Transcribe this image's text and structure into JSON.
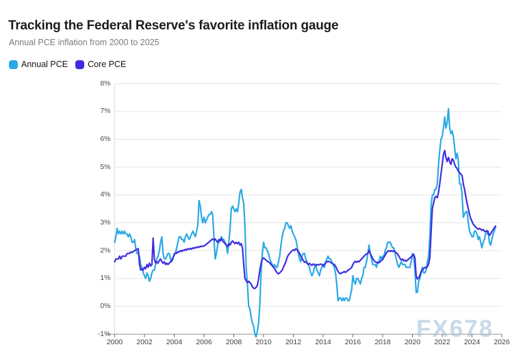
{
  "header": {
    "title": "Tracking the Federal Reserve's favorite inflation gauge",
    "subtitle": "Annual PCE inflation from 2000 to 2025"
  },
  "watermark": {
    "text": "FX678"
  },
  "chart_data": {
    "type": "line",
    "title": "Tracking the Federal Reserve's favorite inflation gauge",
    "subtitle": "Annual PCE inflation from 2000 to 2025",
    "xlabel": "",
    "ylabel": "",
    "xlim": [
      2000,
      2026
    ],
    "ylim": [
      -1,
      8
    ],
    "grid": "horizontal",
    "legend_position": "top-left",
    "x_start_year": 2000,
    "x_interval_months": 1,
    "x_ticks": [
      2000,
      2002,
      2004,
      2006,
      2008,
      2010,
      2012,
      2014,
      2016,
      2018,
      2020,
      2022,
      2024,
      2026
    ],
    "y_ticks": [
      "8%",
      "7%",
      "6%",
      "5%",
      "4%",
      "3%",
      "2%",
      "1%",
      "0%",
      "-1%"
    ],
    "series": [
      {
        "name": "Annual PCE",
        "color": "#29a9e5",
        "values": [
          2.3,
          2.5,
          2.8,
          2.6,
          2.7,
          2.6,
          2.7,
          2.6,
          2.7,
          2.6,
          2.6,
          2.5,
          2.6,
          2.5,
          2.3,
          2.3,
          2.4,
          2.1,
          1.9,
          1.9,
          1.8,
          1.5,
          1.4,
          1.2,
          1.1,
          1.0,
          1.2,
          1.1,
          0.9,
          1.0,
          1.2,
          1.3,
          1.3,
          1.5,
          1.7,
          1.8,
          2.0,
          2.3,
          2.5,
          1.9,
          1.7,
          1.7,
          1.8,
          1.9,
          1.9,
          1.7,
          1.6,
          1.7,
          1.9,
          1.9,
          2.1,
          2.3,
          2.5,
          2.5,
          2.4,
          2.4,
          2.3,
          2.5,
          2.6,
          2.5,
          2.4,
          2.5,
          2.6,
          2.7,
          2.6,
          2.5,
          2.7,
          2.9,
          3.8,
          3.6,
          3.2,
          3.0,
          3.2,
          3.0,
          3.1,
          3.2,
          3.3,
          3.3,
          3.4,
          3.3,
          2.5,
          1.7,
          1.9,
          2.2,
          2.3,
          2.4,
          2.5,
          2.4,
          2.4,
          2.3,
          2.2,
          1.9,
          2.3,
          2.8,
          3.5,
          3.6,
          3.5,
          3.4,
          3.5,
          3.4,
          3.7,
          4.1,
          4.2,
          3.9,
          3.7,
          2.9,
          1.4,
          0.8,
          0.0,
          -0.1,
          -0.4,
          -0.6,
          -0.7,
          -1.0,
          -1.1,
          -0.9,
          -0.6,
          0.1,
          1.2,
          1.9,
          2.3,
          2.1,
          2.1,
          2.0,
          1.9,
          1.7,
          1.6,
          1.5,
          1.4,
          1.5,
          1.4,
          1.4,
          1.6,
          1.8,
          2.2,
          2.5,
          2.7,
          2.8,
          3.0,
          3.0,
          2.9,
          2.8,
          2.9,
          2.7,
          2.6,
          2.5,
          2.4,
          2.2,
          1.9,
          1.7,
          1.6,
          1.8,
          1.9,
          1.9,
          1.7,
          1.6,
          1.5,
          1.4,
          1.2,
          1.1,
          1.2,
          1.4,
          1.5,
          1.3,
          1.2,
          1.1,
          1.3,
          1.4,
          1.5,
          1.4,
          1.6,
          1.7,
          1.8,
          1.7,
          1.7,
          1.6,
          1.5,
          1.4,
          1.2,
          0.8,
          0.2,
          0.3,
          0.3,
          0.2,
          0.3,
          0.2,
          0.3,
          0.3,
          0.2,
          0.2,
          0.4,
          0.6,
          1.1,
          0.9,
          0.8,
          1.0,
          1.0,
          0.9,
          0.8,
          1.0,
          1.1,
          1.4,
          1.4,
          1.6,
          1.9,
          2.2,
          1.9,
          1.7,
          1.5,
          1.5,
          1.5,
          1.4,
          1.6,
          1.6,
          1.8,
          1.7,
          1.8,
          1.8,
          2.0,
          2.1,
          2.3,
          2.3,
          2.3,
          2.2,
          2.1,
          2.1,
          1.9,
          1.7,
          1.5,
          1.4,
          1.5,
          1.6,
          1.5,
          1.5,
          1.5,
          1.4,
          1.4,
          1.4,
          1.4,
          1.6,
          1.9,
          1.8,
          1.3,
          0.5,
          0.5,
          0.9,
          1.0,
          1.2,
          1.4,
          1.2,
          1.2,
          1.3,
          1.6,
          1.8,
          2.5,
          3.6,
          4.0,
          4.0,
          4.2,
          4.2,
          4.4,
          5.1,
          5.6,
          6.0,
          6.1,
          6.4,
          6.8,
          6.4,
          6.6,
          7.1,
          6.4,
          6.2,
          6.3,
          6.1,
          5.7,
          5.3,
          5.5,
          5.2,
          4.4,
          4.4,
          4.0,
          3.2,
          3.3,
          3.4,
          3.4,
          3.0,
          2.7,
          2.6,
          2.5,
          2.5,
          2.7,
          2.7,
          2.6,
          2.4,
          2.5,
          2.3,
          2.1,
          2.3,
          2.4,
          2.6,
          2.6,
          2.7,
          2.3,
          2.2,
          2.4,
          2.6,
          2.7,
          2.85
        ]
      },
      {
        "name": "Core PCE",
        "color": "#3e2cdf",
        "values": [
          1.6,
          1.7,
          1.7,
          1.7,
          1.8,
          1.7,
          1.8,
          1.8,
          1.8,
          1.8,
          1.9,
          1.9,
          1.9,
          1.95,
          1.93,
          1.97,
          2.0,
          2.03,
          2.05,
          2.07,
          1.5,
          1.3,
          1.35,
          1.3,
          1.4,
          1.35,
          1.5,
          1.4,
          1.55,
          1.45,
          1.5,
          2.45,
          1.7,
          1.55,
          1.6,
          1.55,
          1.65,
          1.7,
          1.6,
          1.55,
          1.6,
          1.5,
          1.55,
          1.5,
          1.55,
          1.6,
          1.65,
          1.75,
          1.85,
          1.92,
          1.9,
          1.96,
          1.95,
          2.0,
          1.97,
          2.02,
          2.0,
          2.05,
          2.02,
          2.07,
          2.05,
          2.08,
          2.05,
          2.1,
          2.08,
          2.12,
          2.1,
          2.14,
          2.12,
          2.16,
          2.14,
          2.17,
          2.16,
          2.2,
          2.23,
          2.27,
          2.3,
          2.35,
          2.38,
          2.42,
          2.38,
          2.42,
          2.35,
          2.3,
          2.4,
          2.35,
          2.42,
          2.35,
          2.3,
          2.25,
          2.2,
          2.15,
          2.25,
          2.2,
          2.3,
          2.35,
          2.3,
          2.25,
          2.3,
          2.25,
          2.3,
          2.2,
          2.25,
          2.1,
          1.5,
          1.0,
          0.92,
          0.85,
          0.9,
          0.85,
          0.8,
          0.7,
          0.65,
          0.64,
          0.68,
          0.75,
          1.0,
          1.3,
          1.55,
          1.7,
          1.74,
          1.7,
          1.66,
          1.62,
          1.6,
          1.56,
          1.5,
          1.46,
          1.4,
          1.34,
          1.27,
          1.2,
          1.17,
          1.2,
          1.25,
          1.3,
          1.4,
          1.5,
          1.6,
          1.75,
          1.85,
          1.9,
          1.95,
          2.0,
          2.03,
          2.0,
          2.07,
          2.03,
          1.98,
          1.9,
          1.8,
          1.72,
          1.65,
          1.58,
          1.6,
          1.55,
          1.5,
          1.54,
          1.5,
          1.47,
          1.52,
          1.5,
          1.47,
          1.5,
          1.48,
          1.5,
          1.52,
          1.5,
          1.45,
          1.5,
          1.55,
          1.6,
          1.62,
          1.6,
          1.58,
          1.55,
          1.52,
          1.5,
          1.45,
          1.35,
          1.25,
          1.2,
          1.17,
          1.2,
          1.22,
          1.25,
          1.22,
          1.25,
          1.3,
          1.32,
          1.35,
          1.4,
          1.5,
          1.58,
          1.62,
          1.58,
          1.62,
          1.6,
          1.65,
          1.7,
          1.75,
          1.8,
          1.85,
          1.88,
          1.9,
          2.0,
          1.9,
          1.8,
          1.72,
          1.64,
          1.6,
          1.58,
          1.55,
          1.57,
          1.6,
          1.65,
          1.68,
          1.76,
          1.84,
          1.92,
          1.97,
          2.0,
          1.97,
          2.0,
          1.97,
          2.0,
          1.96,
          1.92,
          1.88,
          1.8,
          1.72,
          1.66,
          1.7,
          1.63,
          1.66,
          1.62,
          1.66,
          1.7,
          1.74,
          1.78,
          1.83,
          1.87,
          1.74,
          1.1,
          0.98,
          1.02,
          1.12,
          1.24,
          1.32,
          1.36,
          1.4,
          1.37,
          1.42,
          1.52,
          1.74,
          2.65,
          3.5,
          3.7,
          3.9,
          3.95,
          3.9,
          4.1,
          4.4,
          4.75,
          5.1,
          5.45,
          5.6,
          5.35,
          5.2,
          5.35,
          5.2,
          5.1,
          5.3,
          5.25,
          5.1,
          5.0,
          4.95,
          4.85,
          4.8,
          4.75,
          4.7,
          4.4,
          4.2,
          3.95,
          3.7,
          3.5,
          3.3,
          3.15,
          3.05,
          2.95,
          2.9,
          2.85,
          2.8,
          2.77,
          2.8,
          2.77,
          2.73,
          2.76,
          2.7,
          2.67,
          2.72,
          2.65,
          2.55,
          2.6,
          2.68,
          2.75,
          2.82,
          2.88
        ]
      }
    ]
  }
}
